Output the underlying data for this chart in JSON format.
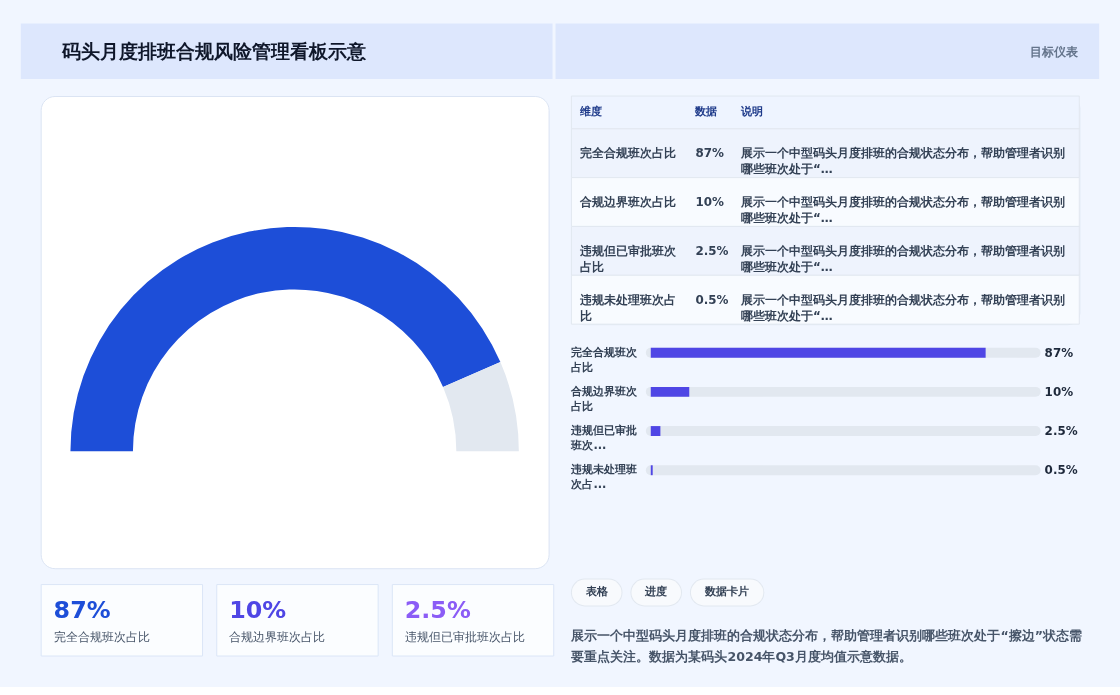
{
  "chart_data": [
    {
      "type": "donut",
      "title": "码头月度排班合规风险管理看板示意",
      "categories": [
        null,
        null
      ],
      "values": [
        87,
        13
      ],
      "colors": [
        "#1d4ed8",
        "#e2e8f0"
      ],
      "legend": false,
      "annotations": [
        "表格",
        "进度",
        "数据卡片",
        "展示一个中型码头月度排班的合规状态分布，帮助管理者识别哪些班次处于“擦边”状态需要重点关注。数据为某码头2024年Q3月度均值示意数据。"
      ]
    },
    {
      "type": "other",
      "subtitle": "目标仪表",
      "categories": [
        "完全合规班次占比",
        "合规边界班次占比",
        "违规但已审批班次占比",
        "违规未处理班次占比"
      ],
      "value_labels": [
        "87%",
        "10%",
        "2.5%",
        "0.5%"
      ],
      "annotations": [
        "维度",
        "数据",
        "说明",
        "展示一个中型码头月度排班的合规状态分布，帮助管理者识别哪些班次处于“…",
        "展示一个中型码头月度排班的合规状态分布，帮助管理者识别哪些班次处于“…",
        "展示一个中型码头月度排班的合规状态分布，帮助管理者识别哪些班次处于“…",
        "展示一个中型码头月度排班的合规状态分布，帮助管理者识别哪些班次处于“…"
      ]
    },
    {
      "type": "bar",
      "orientation": "horizontal",
      "categories": [
        "完全合规班次占比",
        "合规边界班次占比",
        "违规但已审批班次...",
        "违规未处理班次占..."
      ],
      "values": [
        87,
        10,
        2.5,
        0.5
      ],
      "value_labels": [
        "87%",
        "10%",
        "2.5%",
        "0.5%"
      ],
      "color": "#4f46e5",
      "xlim": [
        0,
        100
      ],
      "tick_labels": "y"
    },
    {
      "type": "other",
      "categories": [
        "完全合规班次占比",
        "合规边界班次占比",
        "违规但已审批班次占比"
      ],
      "value_labels": [
        "87%",
        "10%",
        "2.5%"
      ],
      "colors": [
        "#1d4ed8",
        "#4f46e5",
        "#8b5cf6"
      ]
    }
  ]
}
